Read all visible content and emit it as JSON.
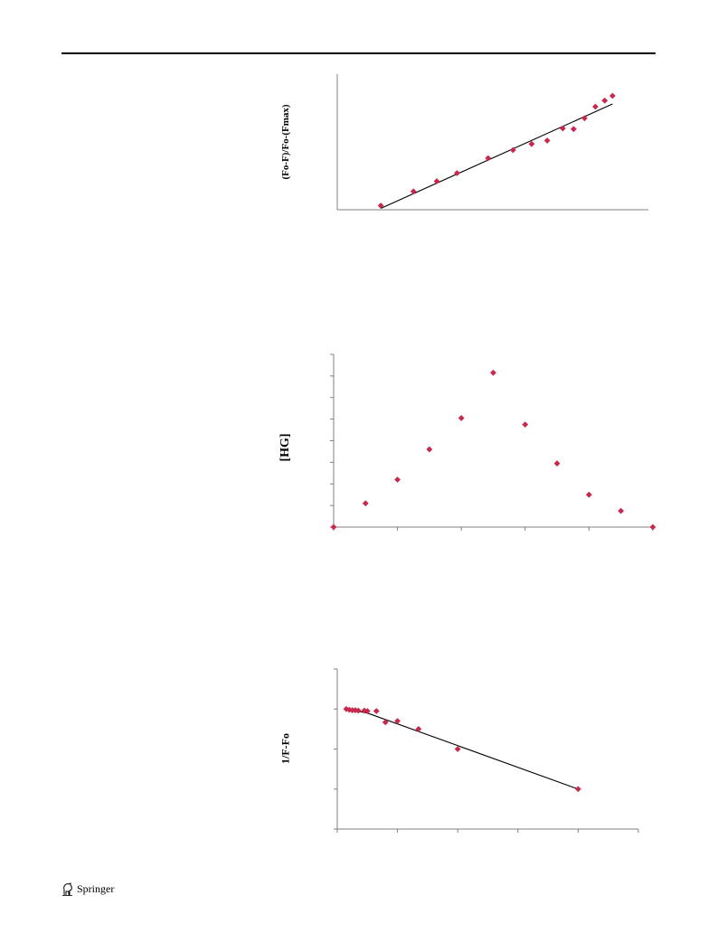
{
  "footer": {
    "publisher": "Springer",
    "logo_icon": "springer-horse-icon"
  },
  "colors": {
    "marker": "#c8284b",
    "line": "#000000",
    "axis": "#808080"
  },
  "chart_data": [
    {
      "type": "scatter",
      "ylabel": "(Fo-F)/Fo-(Fmax)",
      "xlabel": "",
      "title": "",
      "xlim": [
        0,
        1
      ],
      "ylim": [
        0,
        1
      ],
      "x": [
        0.14,
        0.245,
        0.32,
        0.385,
        0.485,
        0.565,
        0.625,
        0.675,
        0.725,
        0.76,
        0.795,
        0.83,
        0.86,
        0.885
      ],
      "y": [
        0.03,
        0.135,
        0.21,
        0.27,
        0.38,
        0.44,
        0.485,
        0.51,
        0.6,
        0.595,
        0.675,
        0.76,
        0.805,
        0.84
      ],
      "trendline": {
        "x": [
          0.14,
          0.885
        ],
        "y": [
          0.01,
          0.78
        ]
      }
    },
    {
      "type": "scatter",
      "ylabel": "[HG]",
      "xlabel": "",
      "title": "",
      "xlim": [
        0,
        1
      ],
      "ylim": [
        0,
        8
      ],
      "x": [
        0.0,
        0.1,
        0.2,
        0.3,
        0.4,
        0.5,
        0.6,
        0.7,
        0.8,
        0.9,
        1.0
      ],
      "y": [
        0.0,
        1.1,
        2.2,
        3.6,
        5.05,
        7.15,
        4.75,
        2.95,
        1.5,
        0.75,
        0.0
      ],
      "yticks": [
        0,
        1,
        2,
        3,
        4,
        5,
        6,
        7,
        8
      ],
      "xticks": [
        0.0,
        0.2,
        0.4,
        0.6,
        0.8,
        1.0
      ]
    },
    {
      "type": "scatter",
      "ylabel": "1/F-Fo",
      "xlabel": "",
      "title": "",
      "xlim": [
        0,
        5
      ],
      "ylim": [
        0,
        4
      ],
      "x": [
        0.15,
        0.2,
        0.25,
        0.3,
        0.35,
        0.45,
        0.5,
        0.65,
        0.8,
        1.0,
        1.35,
        2.0,
        4.0
      ],
      "y": [
        3.0,
        2.98,
        2.97,
        2.97,
        2.96,
        2.96,
        2.95,
        2.95,
        2.67,
        2.7,
        2.5,
        2.0,
        1.0
      ],
      "yticks": [
        0,
        1,
        2,
        3,
        4
      ],
      "xticks": [
        0,
        1,
        2,
        3,
        4,
        5
      ],
      "trendline": {
        "x": [
          0.15,
          0.5,
          4.0
        ],
        "y": [
          3.0,
          2.9,
          1.0
        ]
      }
    }
  ]
}
